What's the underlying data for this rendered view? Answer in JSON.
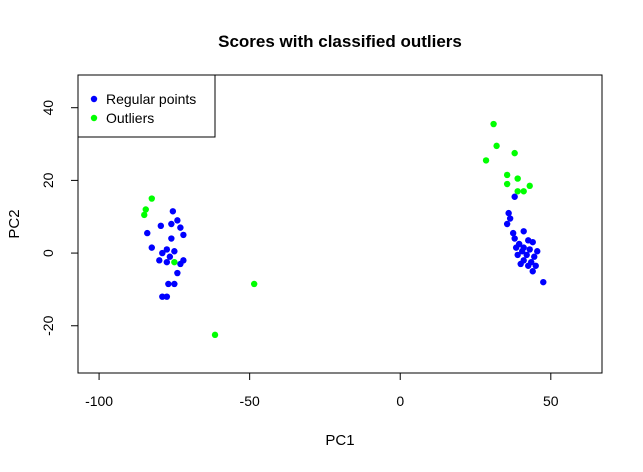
{
  "chart_data": {
    "type": "scatter",
    "title": "Scores with classified outliers",
    "xlabel": "PC1",
    "ylabel": "PC2",
    "xlim": [
      -107,
      67
    ],
    "ylim": [
      -33,
      49
    ],
    "xticks": [
      -100,
      -50,
      0,
      50
    ],
    "yticks": [
      -20,
      0,
      20,
      40
    ],
    "grid": false,
    "legend_position": "top-left",
    "series": [
      {
        "name": "Regular points",
        "color": "#0000ff",
        "points": [
          [
            -75.5,
            11.5
          ],
          [
            -74,
            9
          ],
          [
            -76,
            8
          ],
          [
            -79.5,
            7.5
          ],
          [
            -73,
            7
          ],
          [
            -84,
            5.5
          ],
          [
            -72,
            5
          ],
          [
            -76,
            4
          ],
          [
            -82.5,
            1.5
          ],
          [
            -77.5,
            1
          ],
          [
            -75,
            0.5
          ],
          [
            -79,
            0
          ],
          [
            -76.5,
            -1
          ],
          [
            -80,
            -2
          ],
          [
            -77.5,
            -2.5
          ],
          [
            -72,
            -2
          ],
          [
            -73,
            -3
          ],
          [
            -74,
            -5.5
          ],
          [
            -77,
            -8.5
          ],
          [
            -75,
            -8.5
          ],
          [
            -79,
            -12
          ],
          [
            -77.5,
            -12
          ],
          [
            38,
            15.5
          ],
          [
            36,
            11
          ],
          [
            36.5,
            9.5
          ],
          [
            35.5,
            8
          ],
          [
            37.5,
            5.5
          ],
          [
            41,
            6
          ],
          [
            38,
            4
          ],
          [
            39.5,
            2.5
          ],
          [
            42.5,
            3.5
          ],
          [
            44,
            3
          ],
          [
            41,
            1.5
          ],
          [
            38.5,
            1.5
          ],
          [
            43,
            1
          ],
          [
            40.5,
            0.5
          ],
          [
            45.5,
            0.5
          ],
          [
            42,
            -0.5
          ],
          [
            39,
            -0.5
          ],
          [
            44.5,
            -1
          ],
          [
            41,
            -2
          ],
          [
            43.5,
            -2.5
          ],
          [
            40,
            -3
          ],
          [
            42.5,
            -3.5
          ],
          [
            45,
            -3.5
          ],
          [
            44,
            -5
          ],
          [
            47.5,
            -8
          ]
        ]
      },
      {
        "name": "Outliers",
        "color": "#00ff00",
        "points": [
          [
            -82.5,
            15
          ],
          [
            -84.5,
            12
          ],
          [
            -85,
            10.5
          ],
          [
            -75,
            -2.5
          ],
          [
            -48.5,
            -8.5
          ],
          [
            -61.5,
            -22.5
          ],
          [
            31,
            35.5
          ],
          [
            32,
            29.5
          ],
          [
            38,
            27.5
          ],
          [
            28.5,
            25.5
          ],
          [
            35.5,
            21.5
          ],
          [
            39,
            20.5
          ],
          [
            35.5,
            19
          ],
          [
            43,
            18.5
          ],
          [
            39,
            17
          ],
          [
            41,
            17
          ]
        ]
      }
    ]
  }
}
